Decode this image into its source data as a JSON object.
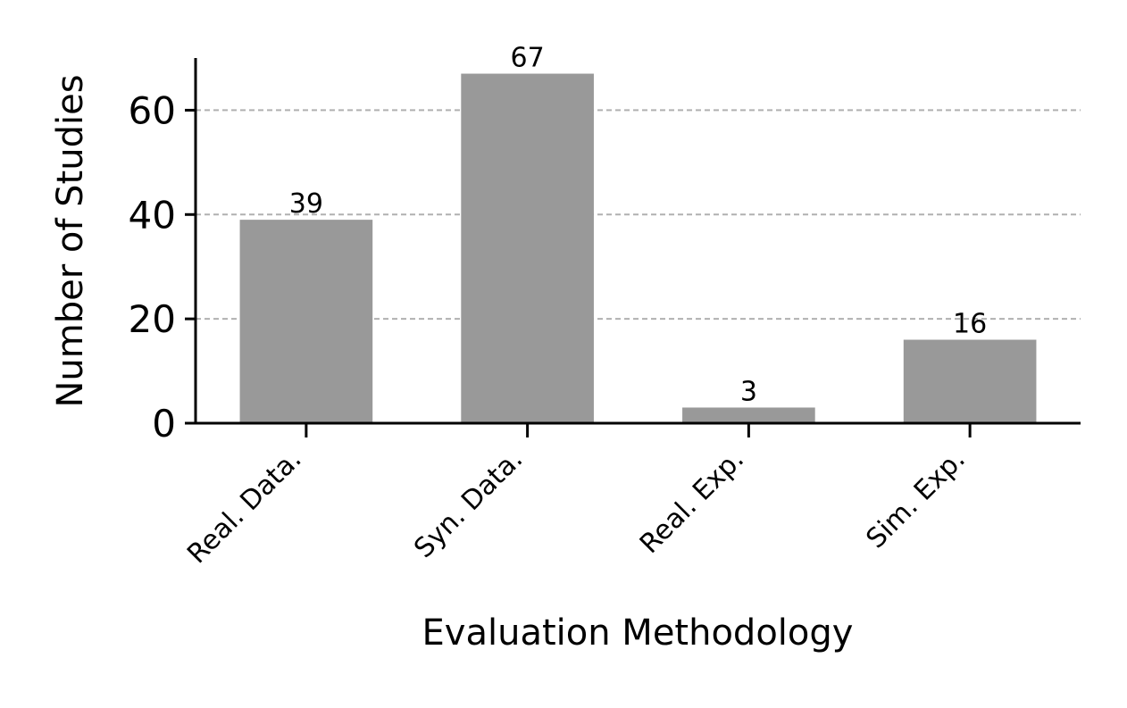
{
  "chart_data": {
    "type": "bar",
    "categories": [
      "Real. Data.",
      "Syn. Data.",
      "Real. Exp.",
      "Sim. Exp."
    ],
    "values": [
      39,
      67,
      3,
      16
    ],
    "title": "",
    "xlabel": "Evaluation Methodology",
    "ylabel": "Number of Studies",
    "ylim": [
      0,
      70
    ],
    "yticks": [
      0,
      20,
      40,
      60
    ],
    "grid": true,
    "bar_color": "#999999",
    "grid_color": "#b0b0b0"
  }
}
